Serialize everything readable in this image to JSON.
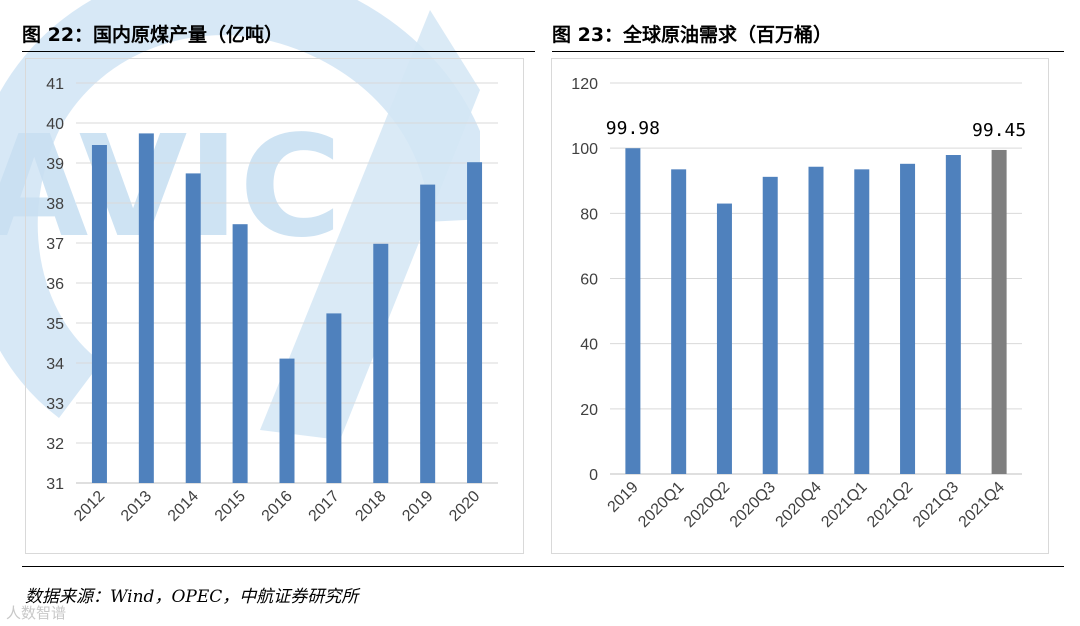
{
  "figures": {
    "left_title": "图 22：国内原煤产量（亿吨）",
    "right_title": "图 23：全球原油需求（百万桶）"
  },
  "source_note": "数据来源：Wind，OPEC，中航证券研究所",
  "logo_text": "AVIC",
  "corner_logo_text": "人数智谱",
  "colors": {
    "bar": "#4f81bd",
    "bar_highlight": "#7f7f7f",
    "watermark": "#d3e6f5"
  },
  "chart_data": [
    {
      "type": "bar",
      "title": "图 22：国内原煤产量（亿吨）",
      "categories": [
        "2012",
        "2013",
        "2014",
        "2015",
        "2016",
        "2017",
        "2018",
        "2019",
        "2020"
      ],
      "values": [
        39.45,
        39.74,
        38.74,
        37.47,
        34.11,
        35.24,
        36.98,
        38.46,
        39.02
      ],
      "ylim": [
        31,
        41
      ],
      "yticks": [
        "31",
        "32",
        "33",
        "34",
        "35",
        "36",
        "37",
        "38",
        "39",
        "40",
        "41"
      ],
      "grid": true,
      "legend": "none"
    },
    {
      "type": "bar",
      "title": "图 23：全球原油需求（百万桶）",
      "categories": [
        "2019",
        "2020Q1",
        "2020Q2",
        "2020Q3",
        "2020Q4",
        "2021Q1",
        "2021Q2",
        "2021Q3",
        "2021Q4"
      ],
      "values": [
        99.98,
        93.5,
        83.0,
        91.2,
        94.3,
        93.5,
        95.2,
        97.9,
        99.45
      ],
      "highlight_index": 8,
      "data_labels": [
        {
          "index": 0,
          "text": "99.98"
        },
        {
          "index": 8,
          "text": "99.45"
        }
      ],
      "ylim": [
        0,
        120
      ],
      "yticks": [
        "0",
        "20",
        "40",
        "60",
        "80",
        "100",
        "120"
      ],
      "grid": true,
      "legend": "none"
    }
  ]
}
